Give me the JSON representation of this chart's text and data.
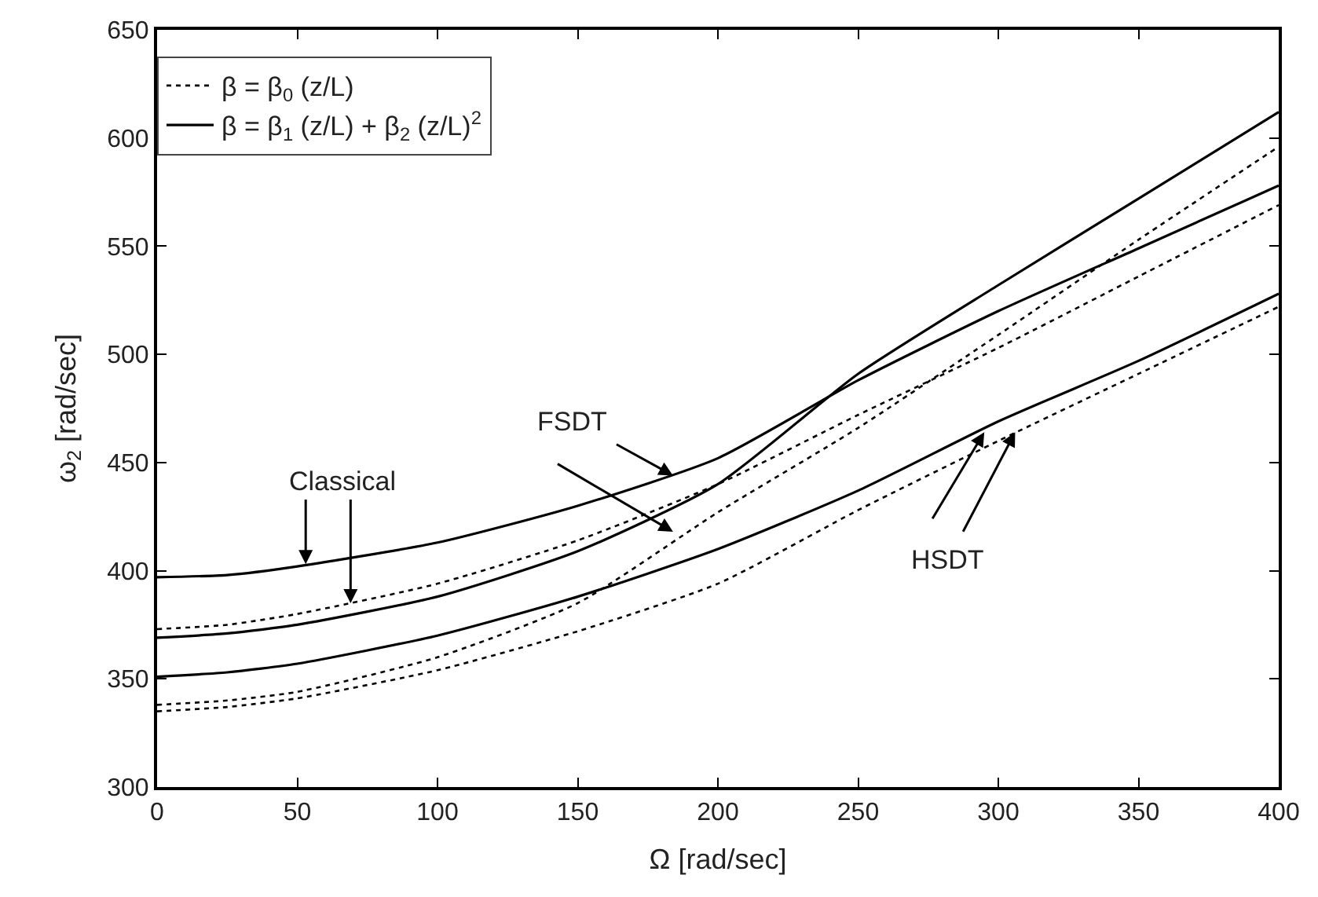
{
  "chart_data": {
    "type": "line",
    "xlabel": "Ω [rad/sec]",
    "ylabel": "ω$_{2}$ [rad/sec]",
    "x": [
      0,
      25,
      50,
      100,
      150,
      200,
      250,
      300,
      350,
      400
    ],
    "xlim": [
      0,
      400
    ],
    "xticks": [
      0,
      50,
      100,
      150,
      200,
      250,
      300,
      350,
      400
    ],
    "ylim": [
      300,
      650
    ],
    "yticks": [
      300,
      350,
      400,
      450,
      500,
      550,
      600,
      650
    ],
    "legend": "top left",
    "marker": "none",
    "series": [
      {
        "name": "β = β$_{0}$ (z/L)",
        "color": "#000000",
        "line_style": "dotted",
        "values": [
          373,
          375,
          380,
          394,
          414,
          440,
          472,
          503,
          536,
          569
        ]
      },
      {
        "name": "β = β$_{1}$ (z/L) + β$_{2}$ (z/L)$^{2}$",
        "color": "#000000",
        "line_style": "solid",
        "values": [
          397,
          398,
          402,
          413,
          430,
          452,
          488,
          520,
          549,
          578
        ]
      },
      {
        "color": "#000000",
        "line_style": "dotted",
        "values": [
          338,
          340,
          344,
          360,
          385,
          427,
          466,
          509,
          553,
          596
        ]
      },
      {
        "color": "#000000",
        "line_style": "solid",
        "values": [
          369,
          371,
          375,
          388,
          409,
          440,
          491,
          532,
          572,
          612
        ]
      },
      {
        "color": "#000000",
        "line_style": "dotted",
        "values": [
          335,
          337,
          341,
          354,
          372,
          394,
          428,
          460,
          491,
          522
        ]
      },
      {
        "color": "#000000",
        "line_style": "solid",
        "values": [
          351,
          353,
          357,
          370,
          388,
          410,
          437,
          469,
          497,
          528
        ]
      }
    ],
    "annotations": [
      {
        "text": "Classical",
        "x": 53,
        "y": 403
      },
      {
        "text": "FSDT",
        "x": 184,
        "y": 444
      },
      {
        "text": "HSDT",
        "x": 295,
        "y": 464
      }
    ]
  }
}
